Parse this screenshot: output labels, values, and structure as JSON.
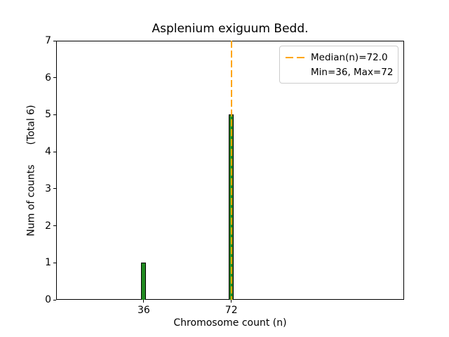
{
  "figure": {
    "background": "#ffffff"
  },
  "chart_data": {
    "type": "bar",
    "title": "Asplenium exiguum Bedd.",
    "xlabel": "Chromosome count (n)",
    "ylabel": "Num of counts",
    "ylabel_secondary": "(Total 6)",
    "total_counts": 6,
    "categories": [
      36,
      72
    ],
    "values": [
      1,
      5
    ],
    "bars": [
      {
        "x": 36,
        "count": 1
      },
      {
        "x": 72,
        "count": 5
      }
    ],
    "median": 72.0,
    "min": 36,
    "max": 72,
    "xlim": [
      0,
      143
    ],
    "ylim": [
      0,
      7
    ],
    "yticks": [
      0,
      1,
      2,
      3,
      4,
      5,
      6,
      7
    ],
    "xticks": [
      36,
      72
    ],
    "grid": false,
    "legend_position": "upper right",
    "colors": {
      "bar_fill": "#228B22",
      "bar_edge": "#000000",
      "median_line": "#FFA500",
      "axis": "#000000"
    }
  },
  "legend": {
    "items": [
      {
        "label": "Median(n)=72.0",
        "marker": "orange-dashed-line"
      },
      {
        "label": "Min=36, Max=72",
        "marker": "none"
      }
    ]
  }
}
